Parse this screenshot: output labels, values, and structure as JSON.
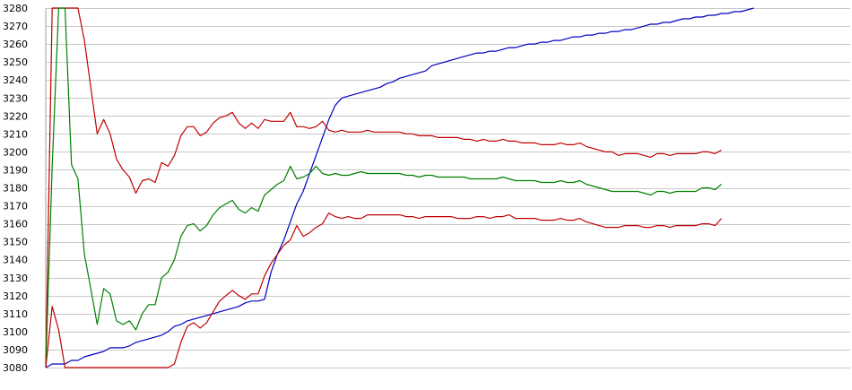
{
  "chart_data": {
    "type": "line",
    "title": "",
    "xlabel": "",
    "ylabel": "",
    "ylim": [
      3080,
      3280
    ],
    "yticks": [
      3080,
      3090,
      3100,
      3110,
      3120,
      3130,
      3140,
      3150,
      3160,
      3170,
      3180,
      3190,
      3200,
      3210,
      3220,
      3230,
      3240,
      3250,
      3260,
      3270,
      3280
    ],
    "xlim": [
      0,
      125
    ],
    "grid": true,
    "legend": "none",
    "series": [
      {
        "color": "#0000c0",
        "values": [
          3080,
          3082,
          3082,
          3082,
          3084,
          3084,
          3086,
          3087,
          3088,
          3089,
          3091,
          3091,
          3091,
          3092,
          3094,
          3095,
          3096,
          3097,
          3098,
          3100,
          3103,
          3104,
          3106,
          3107,
          3108,
          3109,
          3110,
          3111,
          3112,
          3113,
          3114,
          3116,
          3117,
          3117,
          3118,
          3133,
          3143,
          3151,
          3161,
          3171,
          3178,
          3188,
          3198,
          3208,
          3218,
          3226,
          3230,
          3231,
          3232,
          3233,
          3234,
          3235,
          3236,
          3238,
          3239,
          3241,
          3242,
          3243,
          3244,
          3245,
          3248,
          3249,
          3250,
          3251,
          3252,
          3253,
          3254,
          3255,
          3255,
          3256,
          3256,
          3257,
          3258,
          3258,
          3259,
          3260,
          3260,
          3261,
          3261,
          3262,
          3262,
          3263,
          3264,
          3264,
          3265,
          3265,
          3266,
          3266,
          3267,
          3267,
          3268,
          3268,
          3269,
          3270,
          3271,
          3271,
          3272,
          3272,
          3273,
          3274,
          3274,
          3275,
          3275,
          3276,
          3276,
          3277,
          3277,
          3278,
          3278,
          3279,
          3280
        ]
      },
      {
        "color": "#c00000",
        "values": [
          3080,
          3280,
          3280,
          3280,
          3280,
          3280,
          3262,
          3236,
          3210,
          3218,
          3210,
          3196,
          3190,
          3186,
          3177,
          3184,
          3185,
          3183,
          3194,
          3192,
          3198,
          3209,
          3214,
          3214,
          3209,
          3211,
          3216,
          3219,
          3220,
          3222,
          3216,
          3213,
          3216,
          3213,
          3218,
          3217,
          3217,
          3217,
          3222,
          3214,
          3214,
          3213,
          3214,
          3217,
          3212,
          3211,
          3212,
          3211,
          3211,
          3211,
          3212,
          3211,
          3211,
          3211,
          3211,
          3211,
          3210,
          3210,
          3209,
          3209,
          3209,
          3208,
          3208,
          3208,
          3208,
          3207,
          3207,
          3206,
          3207,
          3206,
          3206,
          3207,
          3206,
          3206,
          3205,
          3205,
          3205,
          3204,
          3204,
          3204,
          3205,
          3204,
          3204,
          3205,
          3203,
          3202,
          3201,
          3200,
          3200,
          3198,
          3199,
          3199,
          3199,
          3198,
          3197,
          3199,
          3199,
          3198,
          3199,
          3199,
          3199,
          3199,
          3200,
          3200,
          3199,
          3201
        ]
      },
      {
        "color": "#008000",
        "values": [
          3080,
          3192,
          3280,
          3280,
          3193,
          3185,
          3143,
          3124,
          3104,
          3124,
          3121,
          3106,
          3104,
          3106,
          3101,
          3110,
          3115,
          3115,
          3130,
          3133,
          3140,
          3153,
          3159,
          3160,
          3156,
          3159,
          3165,
          3169,
          3171,
          3173,
          3168,
          3166,
          3169,
          3167,
          3176,
          3179,
          3182,
          3184,
          3192,
          3185,
          3186,
          3188,
          3192,
          3188,
          3187,
          3188,
          3187,
          3187,
          3188,
          3189,
          3188,
          3188,
          3188,
          3188,
          3188,
          3188,
          3187,
          3187,
          3186,
          3187,
          3187,
          3186,
          3186,
          3186,
          3186,
          3186,
          3185,
          3185,
          3185,
          3185,
          3185,
          3186,
          3185,
          3184,
          3184,
          3184,
          3184,
          3183,
          3183,
          3183,
          3184,
          3183,
          3183,
          3184,
          3182,
          3181,
          3180,
          3179,
          3178,
          3178,
          3178,
          3178,
          3178,
          3177,
          3176,
          3178,
          3178,
          3177,
          3178,
          3178,
          3178,
          3178,
          3180,
          3180,
          3179,
          3182
        ]
      },
      {
        "color": "#c00000",
        "values": [
          3080,
          3114,
          3101,
          3080,
          3080,
          3080,
          3080,
          3080,
          3080,
          3080,
          3080,
          3080,
          3080,
          3080,
          3080,
          3080,
          3080,
          3080,
          3080,
          3080,
          3082,
          3094,
          3103,
          3105,
          3102,
          3105,
          3111,
          3117,
          3120,
          3123,
          3120,
          3118,
          3121,
          3121,
          3131,
          3138,
          3143,
          3148,
          3151,
          3159,
          3153,
          3155,
          3158,
          3160,
          3166,
          3164,
          3163,
          3164,
          3163,
          3163,
          3165,
          3165,
          3165,
          3165,
          3165,
          3165,
          3164,
          3164,
          3163,
          3164,
          3164,
          3164,
          3164,
          3164,
          3163,
          3163,
          3163,
          3164,
          3164,
          3163,
          3164,
          3164,
          3165,
          3163,
          3163,
          3163,
          3163,
          3162,
          3162,
          3162,
          3163,
          3162,
          3162,
          3163,
          3161,
          3160,
          3159,
          3158,
          3158,
          3158,
          3159,
          3159,
          3159,
          3158,
          3158,
          3159,
          3159,
          3158,
          3159,
          3159,
          3159,
          3159,
          3160,
          3160,
          3159,
          3163
        ]
      }
    ]
  }
}
